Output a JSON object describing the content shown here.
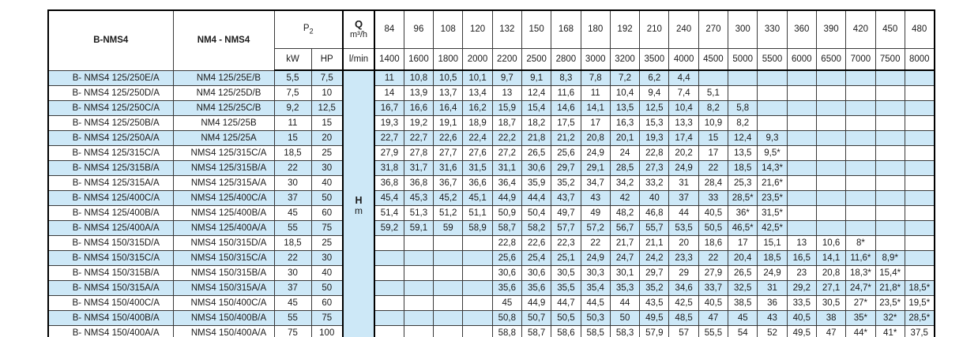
{
  "colors": {
    "stripe_blue": "#cde8f7",
    "grid": "#3a3a3a",
    "outer_border": "#000000",
    "kw_hp_divider": "#808080",
    "text": "#1a1a1a",
    "background": "#ffffff"
  },
  "header": {
    "col1": "B-NMS4",
    "col2": "NM4 - NMS4",
    "p2_base": "P",
    "p2_sub": "2",
    "kw": "kW",
    "hp": "HP",
    "q_label": "Q",
    "q_unit": "m³/h",
    "lmin": "l/min",
    "flow_m3h": [
      "84",
      "96",
      "108",
      "120",
      "132",
      "150",
      "168",
      "180",
      "192",
      "210",
      "240",
      "270",
      "300",
      "330",
      "360",
      "390",
      "420",
      "450",
      "480"
    ],
    "flow_lmin": [
      "1400",
      "1600",
      "1800",
      "2000",
      "2200",
      "2500",
      "2800",
      "3000",
      "3200",
      "3500",
      "4000",
      "4500",
      "5000",
      "5500",
      "6000",
      "6500",
      "7000",
      "7500",
      "8000"
    ]
  },
  "head_section": {
    "h_label": "H",
    "h_unit": "m"
  },
  "rows": [
    {
      "bnms4": "B- NMS4 125/250E/A",
      "nm4": "NM4 125/25E/B",
      "kw": "5,5",
      "hp": "7,5",
      "values": [
        "11",
        "10,8",
        "10,5",
        "10,1",
        "9,7",
        "9,1",
        "8,3",
        "7,8",
        "7,2",
        "6,2",
        "4,4",
        "",
        "",
        "",
        "",
        "",
        "",
        "",
        ""
      ]
    },
    {
      "bnms4": "B- NMS4 125/250D/A",
      "nm4": "NM4 125/25D/B",
      "kw": "7,5",
      "hp": "10",
      "values": [
        "14",
        "13,9",
        "13,7",
        "13,4",
        "13",
        "12,4",
        "11,6",
        "11",
        "10,4",
        "9,4",
        "7,4",
        "5,1",
        "",
        "",
        "",
        "",
        "",
        "",
        ""
      ]
    },
    {
      "bnms4": "B- NMS4 125/250C/A",
      "nm4": "NM4 125/25C/B",
      "kw": "9,2",
      "hp": "12,5",
      "values": [
        "16,7",
        "16,6",
        "16,4",
        "16,2",
        "15,9",
        "15,4",
        "14,6",
        "14,1",
        "13,5",
        "12,5",
        "10,4",
        "8,2",
        "5,8",
        "",
        "",
        "",
        "",
        "",
        ""
      ]
    },
    {
      "bnms4": "B- NMS4 125/250B/A",
      "nm4": "NM4 125/25B",
      "kw": "11",
      "hp": "15",
      "values": [
        "19,3",
        "19,2",
        "19,1",
        "18,9",
        "18,7",
        "18,2",
        "17,5",
        "17",
        "16,3",
        "15,3",
        "13,3",
        "10,9",
        "8,2",
        "",
        "",
        "",
        "",
        "",
        ""
      ]
    },
    {
      "bnms4": "B- NMS4 125/250A/A",
      "nm4": "NM4 125/25A",
      "kw": "15",
      "hp": "20",
      "values": [
        "22,7",
        "22,7",
        "22,6",
        "22,4",
        "22,2",
        "21,8",
        "21,2",
        "20,8",
        "20,1",
        "19,3",
        "17,4",
        "15",
        "12,4",
        "9,3",
        "",
        "",
        "",
        "",
        ""
      ]
    },
    {
      "bnms4": "B- NMS4 125/315C/A",
      "nm4": "NMS4 125/315C/A",
      "kw": "18,5",
      "hp": "25",
      "values": [
        "27,9",
        "27,8",
        "27,7",
        "27,6",
        "27,2",
        "26,5",
        "25,6",
        "24,9",
        "24",
        "22,8",
        "20,2",
        "17",
        "13,5",
        "9,5*",
        "",
        "",
        "",
        "",
        ""
      ]
    },
    {
      "bnms4": "B- NMS4 125/315B/A",
      "nm4": "NMS4 125/315B/A",
      "kw": "22",
      "hp": "30",
      "values": [
        "31,8",
        "31,7",
        "31,6",
        "31,5",
        "31,1",
        "30,6",
        "29,7",
        "29,1",
        "28,5",
        "27,3",
        "24,9",
        "22",
        "18,5",
        "14,3*",
        "",
        "",
        "",
        "",
        ""
      ]
    },
    {
      "bnms4": "B- NMS4 125/315A/A",
      "nm4": "NMS4 125/315A/A",
      "kw": "30",
      "hp": "40",
      "values": [
        "36,8",
        "36,8",
        "36,7",
        "36,6",
        "36,4",
        "35,9",
        "35,2",
        "34,7",
        "34,2",
        "33,2",
        "31",
        "28,4",
        "25,3",
        "21,6*",
        "",
        "",
        "",
        "",
        ""
      ]
    },
    {
      "bnms4": "B- NMS4 125/400C/A",
      "nm4": "NMS4 125/400C/A",
      "kw": "37",
      "hp": "50",
      "values": [
        "45,4",
        "45,3",
        "45,2",
        "45,1",
        "44,9",
        "44,4",
        "43,7",
        "43",
        "42",
        "40",
        "37",
        "33",
        "28,5*",
        "23,5*",
        "",
        "",
        "",
        "",
        ""
      ]
    },
    {
      "bnms4": "B- NMS4 125/400B/A",
      "nm4": "NMS4 125/400B/A",
      "kw": "45",
      "hp": "60",
      "values": [
        "51,4",
        "51,3",
        "51,2",
        "51,1",
        "50,9",
        "50,4",
        "49,7",
        "49",
        "48,2",
        "46,8",
        "44",
        "40,5",
        "36*",
        "31,5*",
        "",
        "",
        "",
        "",
        ""
      ]
    },
    {
      "bnms4": "B- NMS4 125/400A/A",
      "nm4": "NMS4 125/400A/A",
      "kw": "55",
      "hp": "75",
      "values": [
        "59,2",
        "59,1",
        "59",
        "58,9",
        "58,7",
        "58,2",
        "57,7",
        "57,2",
        "56,7",
        "55,7",
        "53,5",
        "50,5",
        "46,5*",
        "42,5*",
        "",
        "",
        "",
        "",
        ""
      ]
    },
    {
      "bnms4": "B- NMS4 150/315D/A",
      "nm4": "NMS4 150/315D/A",
      "kw": "18,5",
      "hp": "25",
      "values": [
        "",
        "",
        "",
        "",
        "22,8",
        "22,6",
        "22,3",
        "22",
        "21,7",
        "21,1",
        "20",
        "18,6",
        "17",
        "15,1",
        "13",
        "10,6",
        "8*",
        "",
        ""
      ]
    },
    {
      "bnms4": "B- NMS4 150/315C/A",
      "nm4": "NMS4 150/315C/A",
      "kw": "22",
      "hp": "30",
      "values": [
        "",
        "",
        "",
        "",
        "25,6",
        "25,4",
        "25,1",
        "24,9",
        "24,7",
        "24,2",
        "23,3",
        "22",
        "20,4",
        "18,5",
        "16,5",
        "14,1",
        "11,6*",
        "8,9*",
        ""
      ]
    },
    {
      "bnms4": "B- NMS4 150/315B/A",
      "nm4": "NMS4 150/315B/A",
      "kw": "30",
      "hp": "40",
      "values": [
        "",
        "",
        "",
        "",
        "30,6",
        "30,6",
        "30,5",
        "30,3",
        "30,1",
        "29,7",
        "29",
        "27,9",
        "26,5",
        "24,9",
        "23",
        "20,8",
        "18,3*",
        "15,4*",
        ""
      ]
    },
    {
      "bnms4": "B- NMS4 150/315A/A",
      "nm4": "NMS4 150/315A/A",
      "kw": "37",
      "hp": "50",
      "values": [
        "",
        "",
        "",
        "",
        "35,6",
        "35,6",
        "35,5",
        "35,4",
        "35,3",
        "35,2",
        "34,6",
        "33,7",
        "32,5",
        "31",
        "29,2",
        "27,1",
        "24,7*",
        "21,8*",
        "18,5*"
      ]
    },
    {
      "bnms4": "B- NMS4 150/400C/A",
      "nm4": "NMS4 150/400C/A",
      "kw": "45",
      "hp": "60",
      "values": [
        "",
        "",
        "",
        "",
        "45",
        "44,9",
        "44,7",
        "44,5",
        "44",
        "43,5",
        "42,5",
        "40,5",
        "38,5",
        "36",
        "33,5",
        "30,5",
        "27*",
        "23,5*",
        "19,5*"
      ]
    },
    {
      "bnms4": "B- NMS4 150/400B/A",
      "nm4": "NMS4 150/400B/A",
      "kw": "55",
      "hp": "75",
      "values": [
        "",
        "",
        "",
        "",
        "50,8",
        "50,7",
        "50,5",
        "50,3",
        "50",
        "49,5",
        "48,5",
        "47",
        "45",
        "43",
        "40,5",
        "38",
        "35*",
        "32*",
        "28,5*"
      ]
    },
    {
      "bnms4": "B- NMS4 150/400A/A",
      "nm4": "NMS4 150/400A/A",
      "kw": "75",
      "hp": "100",
      "values": [
        "",
        "",
        "",
        "",
        "58,8",
        "58,7",
        "58,6",
        "58,5",
        "58,3",
        "57,9",
        "57",
        "55,5",
        "54",
        "52",
        "49,5",
        "47",
        "44*",
        "41*",
        "37,5"
      ]
    }
  ]
}
